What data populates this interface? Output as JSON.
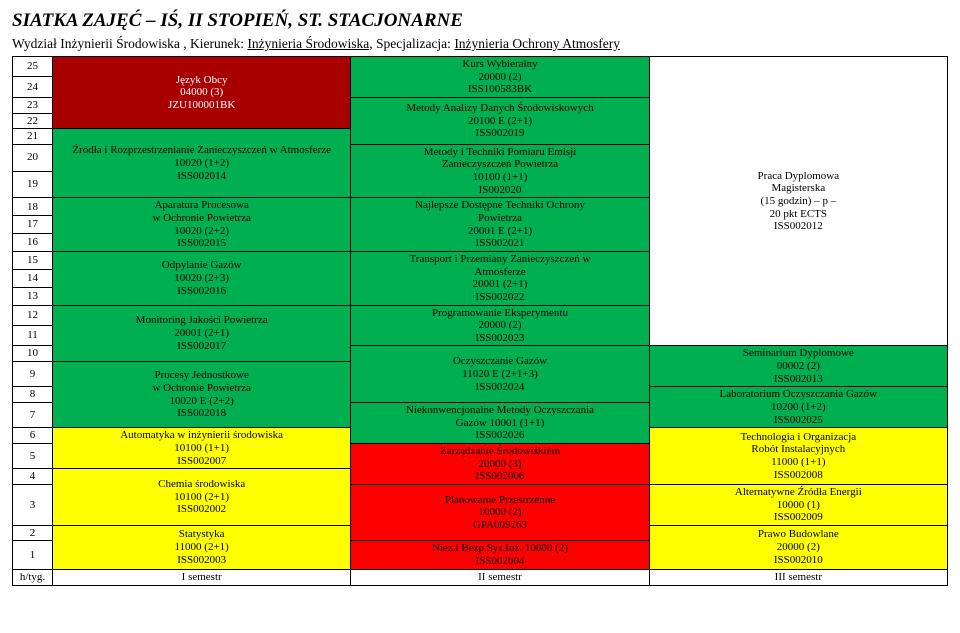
{
  "title": "SIATKA ZAJĘĆ – IŚ, II STOPIEŃ, ST. STACJONARNE",
  "subtitle": {
    "faculty_label": "Wydział Inżynierii Środowiska , Kierunek:",
    "direction": "Inżynieria Środowiska",
    "spec_label": ", Specjalizacja:",
    "specialization": "Inżynieria Ochrony Atmosfery"
  },
  "rows": [
    "25",
    "24",
    "23",
    "22",
    "21",
    "20",
    "19",
    "18",
    "17",
    "16",
    "15",
    "14",
    "13",
    "12",
    "11",
    "10",
    "9",
    "8",
    "7",
    "6",
    "5",
    "4",
    "3",
    "2",
    "1"
  ],
  "footer_label": "h/tyg.",
  "sem1": "I semestr",
  "sem2": "II semestr",
  "sem3": "III semestr",
  "c1": {
    "a": "Język Obcy\n04000 (3)\nJZU100001BK",
    "b": "Źródła i Rozprzestrzenianie Zanieczyszczeń w Atmosferze\n10020 (1+2)\nISS002014",
    "c": "Aparatura Procesowa\nw Ochronie Powietrza\n10020 (2+2)\nISS002015",
    "d": "Odpylanie Gazów\n10020 (2+3)\nISS002016",
    "e": "Monitoring Jakości Powietrza\n20001 (2+1)\nISS002017",
    "f": "Procesy Jednostkowe\nw Ochronie Powietrza\n10020 E (2+2)\nISS002018",
    "g": "Automatyka w inżynierii środowiska\n10100 (1+1)\nISS002007",
    "h": "Chemia środowiska\n10100  (2+1)\nISS002002",
    "i": "Statystyka\n11000 (2+1)\nISS002003"
  },
  "c2": {
    "a": "Kurs Wybieralny\n20000 (2)\nISS100583BK",
    "b": "Metody Analizy Danych Środowiskowych\n20100 E (2+1)\nISS002019",
    "c": "Metody i Techniki Pomiaru Emisji\nZanieczyszczeń Powietrza\n10100 (1+1)\nIS002020",
    "d": "Najlepsze Dostępne Techniki Ochrony\nPowietrza\n20001 E (2+1)\nISS002021",
    "e": "Transport i Przemiany Zanieczyszczeń w\nAtmosferze\n20001 (2+1)\nISS002022",
    "f": "Programowanie Eksperymentu\n20000 (2)\nISS002023",
    "g": "Oczyszczanie Gazów\n11020 E (2+1+3)\nISS002024",
    "h": "Niekonwencjonalne Metody Oczyszczania\nGazów 10001 (1+1)\nISS002026",
    "i": "Zarządzanie Środowiskiem\n20000 (3)\nISS002006",
    "j": "Planowanie Przestrzenne\n10000 (2)\nGPA009263",
    "k": "Niez.i Bezp.Sys.Inż. 10000 (2)\nISS002004"
  },
  "c3": {
    "a": "Praca Dyplomowa\nMagisterska\n(15 godzin) – p – \n20 pkt ECTS\nISS002012",
    "b": "Seminarium Dyplomowe\n00002 (2)\nISS002013",
    "c": "Laboratorium Oczyszczania Gazów\n10200 (1+2)\nISS002025",
    "d": "Technologia i Organizacja\nRobót Instalacyjnych\n11000 (1+1)\nISS002008",
    "e": "Alternatywne Źródła Energii\n10000 (1)\nISS002009",
    "f": "Prawo Budowlane\n20000  (2)\nISS002010"
  },
  "colors": {
    "green": "#00b050",
    "yellow": "#ffff00",
    "darkred": "#a80000",
    "red": "#ff0000",
    "white": "#ffffff"
  }
}
